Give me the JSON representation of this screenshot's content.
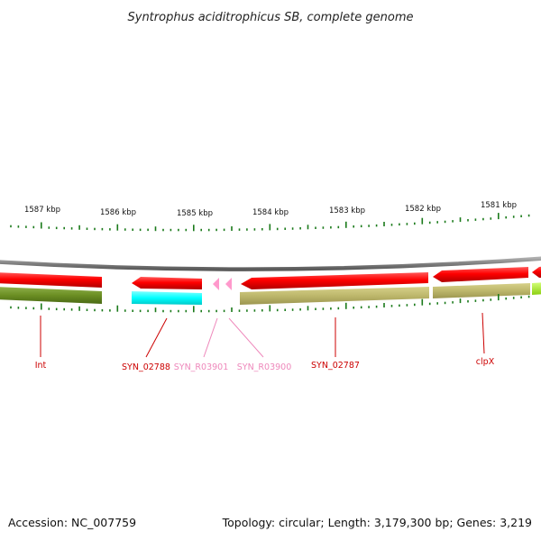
{
  "title": "Syntrophus aciditrophicus SB, complete genome",
  "kbp_ticks": [
    "1587 kbp",
    "1586 kbp",
    "1585 kbp",
    "1584 kbp",
    "1583 kbp",
    "1582 kbp",
    "1581 kbp"
  ],
  "genes": [
    {
      "name": "Int",
      "color": "#cc0000"
    },
    {
      "name": "SYN_02788",
      "color": "#cc0000"
    },
    {
      "name": "SYN_R03901",
      "color": "#ee88bb"
    },
    {
      "name": "SYN_R03900",
      "color": "#ee88bb"
    },
    {
      "name": "SYN_02787",
      "color": "#cc0000"
    },
    {
      "name": "clpX",
      "color": "#cc0000"
    }
  ],
  "colors": {
    "backbone": "#808080",
    "cds": "#ff0000",
    "rna": "#ff99cc",
    "cog_olive_dark": "#6b8e23",
    "cog_khaki": "#bdb76b",
    "cog_cyan": "#00ffff",
    "cog_lime": "#adff2f",
    "ticks": "#1a7a1a"
  },
  "footer": {
    "accession": "Accession: NC_007759",
    "summary": "Topology: circular; Length: 3,179,300 bp; Genes: 3,219"
  }
}
